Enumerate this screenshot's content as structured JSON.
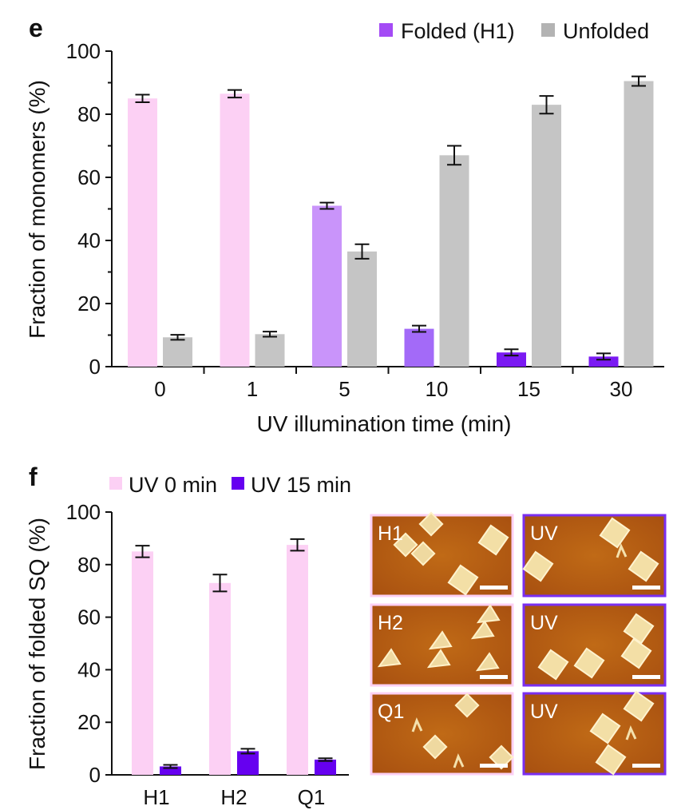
{
  "chart_data": [
    {
      "panel": "e",
      "type": "bar",
      "categories": [
        "0",
        "1",
        "5",
        "10",
        "15",
        "30"
      ],
      "xlabel": "UV illumination time (min)",
      "ylabel": "Fraction of monomers (%)",
      "ylim": [
        0,
        100
      ],
      "yticks": [
        "0",
        "20",
        "40",
        "60",
        "80",
        "100"
      ],
      "legend_position": "top-right",
      "grid": false,
      "series": [
        {
          "name": "Folded (H1)",
          "values": [
            85,
            86.5,
            51,
            12,
            4.5,
            3.2
          ],
          "errors": [
            1.2,
            1.2,
            1.0,
            1.0,
            1.0,
            1.0
          ],
          "colors": [
            "#fcd0f4",
            "#fcd0f4",
            "#c994fa",
            "#a36af8",
            "#7a1af2",
            "#7a1af2"
          ],
          "legend_color": "#a44bf5"
        },
        {
          "name": "Unfolded",
          "values": [
            9.3,
            10.3,
            36.5,
            67,
            83,
            90.5
          ],
          "errors": [
            0.8,
            0.8,
            2.3,
            3.0,
            2.8,
            1.5
          ],
          "colors": [
            "#c5c5c5",
            "#c5c5c5",
            "#c5c5c5",
            "#c5c5c5",
            "#c5c5c5",
            "#c5c5c5"
          ],
          "legend_color": "#b3b3b3"
        }
      ]
    },
    {
      "panel": "f",
      "type": "bar",
      "categories": [
        "H1",
        "H2",
        "Q1"
      ],
      "xlabel": "",
      "ylabel": "Fraction of folded SQ (%)",
      "ylim": [
        0,
        100
      ],
      "yticks": [
        "0",
        "20",
        "40",
        "60",
        "80",
        "100"
      ],
      "legend_position": "top-left",
      "grid": false,
      "series": [
        {
          "name": "UV 0 min",
          "values": [
            85,
            73,
            87.5
          ],
          "errors": [
            2.2,
            3.2,
            2.2
          ],
          "color": "#fcd0f4"
        },
        {
          "name": "UV 15 min",
          "values": [
            3.2,
            9,
            5.8
          ],
          "errors": [
            0.6,
            0.9,
            0.5
          ],
          "color": "#6600f0"
        }
      ]
    }
  ],
  "panels": {
    "e": "e",
    "f": "f"
  },
  "micrographs": [
    {
      "label": "H1",
      "border": "#fcd0f4"
    },
    {
      "label": "UV",
      "border": "#7a2ff0"
    },
    {
      "label": "H2",
      "border": "#fcd0f4"
    },
    {
      "label": "UV",
      "border": "#7a2ff0"
    },
    {
      "label": "Q1",
      "border": "#fcd0f4"
    },
    {
      "label": "UV",
      "border": "#7a2ff0"
    }
  ]
}
